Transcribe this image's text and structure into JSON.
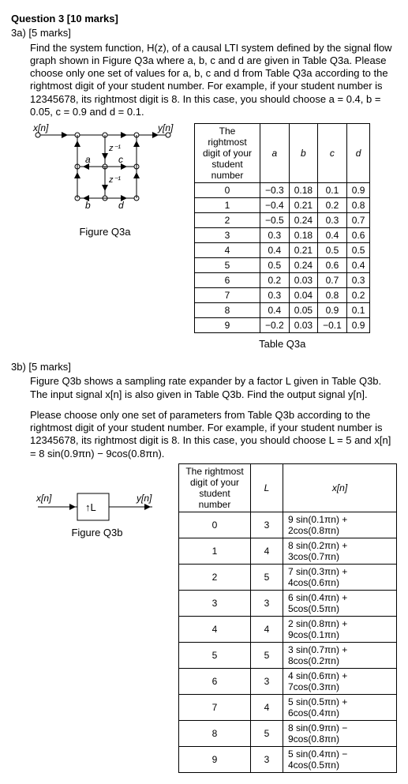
{
  "q": {
    "title": "Question 3 [10 marks]",
    "part_a_title": "3a) [5 marks]",
    "part_a_text": "Find the system function,  H(z),  of a causal LTI system defined by the signal flow graph shown in Figure Q3a where a, b, c and d are given in Table Q3a. Please choose only one set of values for a, b, c and d from Table Q3a according to the rightmost digit of your student number. For example, if your student number is 12345678, its rightmost digit is 8. In this case, you should choose a = 0.4, b = 0.05, c = 0.9 and d = 0.1.",
    "fig_a_caption": "Figure Q3a",
    "table_a_caption": "Table Q3a",
    "part_b_title": "3b) [5 marks]",
    "part_b_text1": "Figure Q3b shows a sampling rate expander by a factor L given in Table Q3b. The input signal x[n] is also given in Table Q3b. Find the output signal y[n].",
    "part_b_text2": "Please choose only one set of parameters from Table Q3b according to the rightmost digit of your student number. For example, if your student number is 12345678, its rightmost digit is 8. In this case, you should choose L = 5 and x[n] = 8 sin(0.9πn) − 9cos(0.8πn).",
    "fig_b_caption": "Figure Q3b",
    "fig_b_label": "↑L"
  },
  "labels": {
    "xn": "x[n]",
    "yn": "y[n]",
    "zinv": "z⁻¹",
    "a": "a",
    "b": "b",
    "c": "c",
    "d": "d"
  },
  "tableA": {
    "head": [
      "The rightmost digit of your student number",
      "a",
      "b",
      "c",
      "d"
    ],
    "rows": [
      [
        "0",
        "−0.3",
        "0.18",
        "0.1",
        "0.9"
      ],
      [
        "1",
        "−0.4",
        "0.21",
        "0.2",
        "0.8"
      ],
      [
        "2",
        "−0.5",
        "0.24",
        "0.3",
        "0.7"
      ],
      [
        "3",
        "0.3",
        "0.18",
        "0.4",
        "0.6"
      ],
      [
        "4",
        "0.4",
        "0.21",
        "0.5",
        "0.5"
      ],
      [
        "5",
        "0.5",
        "0.24",
        "0.6",
        "0.4"
      ],
      [
        "6",
        "0.2",
        "0.03",
        "0.7",
        "0.3"
      ],
      [
        "7",
        "0.3",
        "0.04",
        "0.8",
        "0.2"
      ],
      [
        "8",
        "0.4",
        "0.05",
        "0.9",
        "0.1"
      ],
      [
        "9",
        "−0.2",
        "0.03",
        "−0.1",
        "0.9"
      ]
    ]
  },
  "tableB": {
    "head": [
      "The rightmost digit of your student number",
      "L",
      "x[n]"
    ],
    "rows": [
      [
        "0",
        "3",
        "9 sin(0.1πn) + 2cos(0.8πn)"
      ],
      [
        "1",
        "4",
        "8 sin(0.2πn) + 3cos(0.7πn)"
      ],
      [
        "2",
        "5",
        "7 sin(0.3πn) + 4cos(0.6πn)"
      ],
      [
        "3",
        "3",
        "6 sin(0.4πn) + 5cos(0.5πn)"
      ],
      [
        "4",
        "4",
        "2 sin(0.8πn) + 9cos(0.1πn)"
      ],
      [
        "5",
        "5",
        "3 sin(0.7πn) + 8cos(0.2πn)"
      ],
      [
        "6",
        "3",
        "4 sin(0.6πn) + 7cos(0.3πn)"
      ],
      [
        "7",
        "4",
        "5 sin(0.5πn) + 6cos(0.4πn)"
      ],
      [
        "8",
        "5",
        "8 sin(0.9πn) − 9cos(0.8πn)"
      ],
      [
        "9",
        "3",
        "5 sin(0.4πn) − 4cos(0.5πn)"
      ]
    ]
  }
}
